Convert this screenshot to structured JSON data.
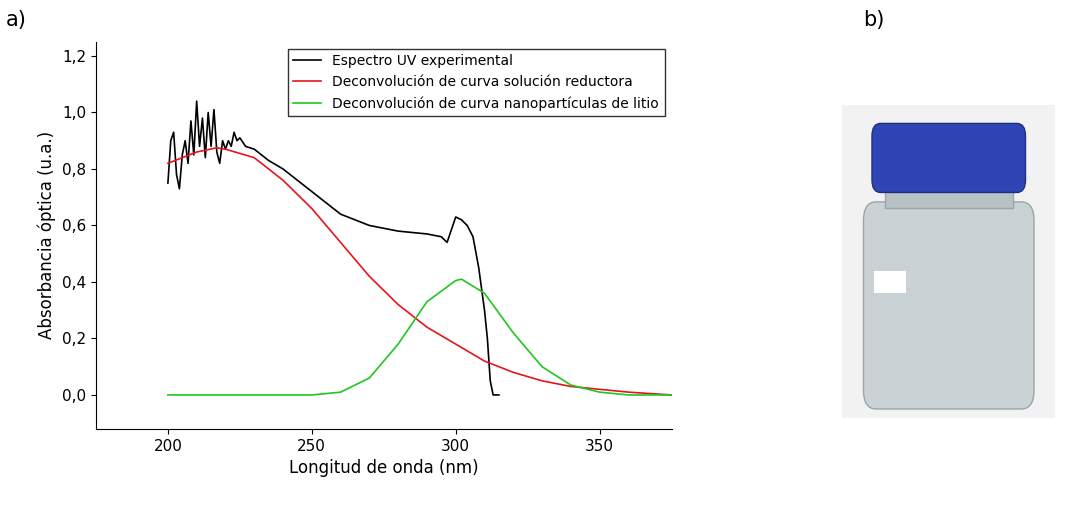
{
  "panel_labels": [
    "a)",
    "b)"
  ],
  "chart_data": {
    "type": "line",
    "x_label": "Longitud de onda (nm)",
    "y_label": "Absorbancia óptica (u.a.)",
    "xlim": [
      175,
      375
    ],
    "xticks": [
      200,
      250,
      300,
      350
    ],
    "ylim": [
      -0.12,
      1.25
    ],
    "yticks": [
      {
        "value": 0.0,
        "label": "0,0"
      },
      {
        "value": 0.2,
        "label": "0,2"
      },
      {
        "value": 0.4,
        "label": "0,4"
      },
      {
        "value": 0.6,
        "label": "0,6"
      },
      {
        "value": 0.8,
        "label": "0,8"
      },
      {
        "value": 1.0,
        "label": "1,0"
      },
      {
        "value": 1.2,
        "label": "1,2"
      }
    ],
    "legend": "upper right",
    "grid": false,
    "series": [
      {
        "name": "Espectro UV experimental",
        "color": "#000000",
        "line_style": "solid",
        "x": [
          200,
          201,
          202,
          203,
          204,
          205,
          206,
          207,
          208,
          209,
          210,
          211,
          212,
          213,
          214,
          215,
          216,
          217,
          218,
          219,
          220,
          221,
          222,
          223,
          224,
          225,
          227,
          230,
          235,
          240,
          245,
          250,
          255,
          260,
          265,
          270,
          275,
          280,
          285,
          290,
          295,
          297,
          299,
          300,
          302,
          304,
          306,
          308,
          310,
          311,
          312,
          313,
          315
        ],
        "values": [
          0.75,
          0.9,
          0.93,
          0.78,
          0.73,
          0.85,
          0.9,
          0.82,
          0.97,
          0.85,
          1.04,
          0.88,
          0.98,
          0.84,
          1.0,
          0.88,
          1.01,
          0.86,
          0.82,
          0.9,
          0.87,
          0.9,
          0.88,
          0.93,
          0.9,
          0.91,
          0.88,
          0.87,
          0.83,
          0.8,
          0.76,
          0.72,
          0.68,
          0.64,
          0.62,
          0.6,
          0.59,
          0.58,
          0.575,
          0.57,
          0.56,
          0.54,
          0.6,
          0.63,
          0.62,
          0.6,
          0.56,
          0.45,
          0.3,
          0.2,
          0.05,
          0.0,
          0.0
        ]
      },
      {
        "name": "Deconvolución de curva solución reductora",
        "color": "#e8141c",
        "line_style": "solid",
        "x": [
          200,
          210,
          217,
          220,
          230,
          240,
          250,
          260,
          270,
          280,
          290,
          300,
          310,
          320,
          330,
          340,
          350,
          360,
          375
        ],
        "values": [
          0.82,
          0.86,
          0.875,
          0.87,
          0.84,
          0.76,
          0.66,
          0.54,
          0.42,
          0.32,
          0.24,
          0.18,
          0.12,
          0.08,
          0.05,
          0.03,
          0.02,
          0.01,
          0.0
        ]
      },
      {
        "name": "Deconvolución de curva nanopartículas de litio",
        "color": "#1fc71f",
        "line_style": "solid",
        "x": [
          200,
          250,
          260,
          270,
          280,
          290,
          300,
          302,
          310,
          320,
          330,
          340,
          350,
          360,
          375
        ],
        "values": [
          0.0,
          0.0,
          0.01,
          0.06,
          0.18,
          0.33,
          0.405,
          0.41,
          0.36,
          0.22,
          0.1,
          0.035,
          0.01,
          0.0,
          0.0
        ]
      }
    ]
  }
}
